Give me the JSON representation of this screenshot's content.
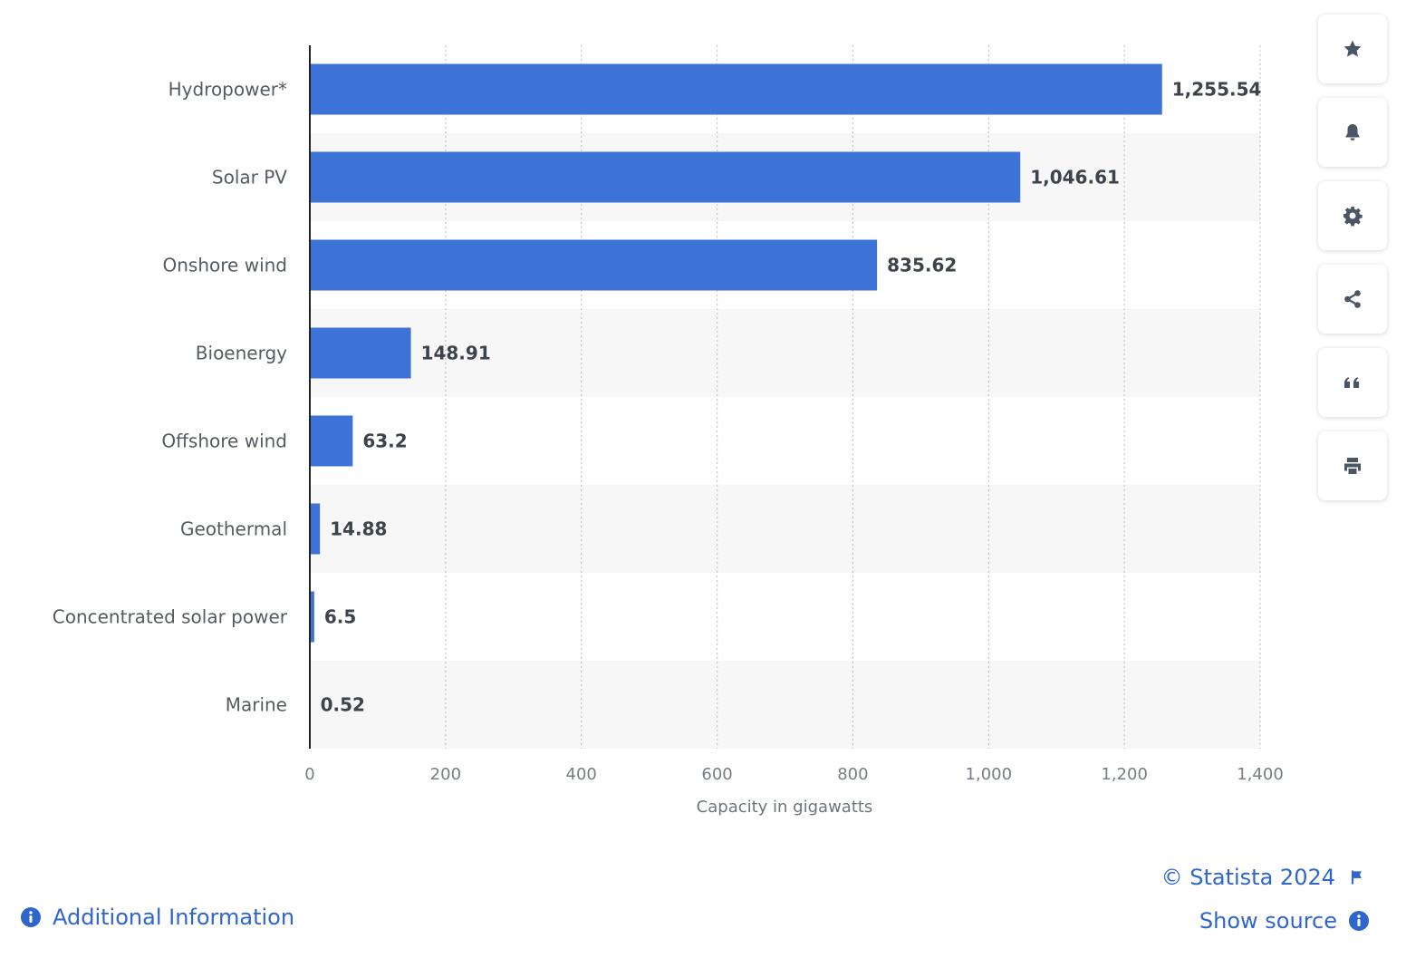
{
  "chart_data": {
    "type": "bar",
    "orientation": "horizontal",
    "categories": [
      "Hydropower*",
      "Solar PV",
      "Onshore wind",
      "Bioenergy",
      "Offshore wind",
      "Geothermal",
      "Concentrated solar power",
      "Marine"
    ],
    "values": [
      1255.54,
      1046.61,
      835.62,
      148.91,
      63.2,
      14.88,
      6.5,
      0.52
    ],
    "value_labels": [
      "1,255.54",
      "1,046.61",
      "835.62",
      "148.91",
      "63.2",
      "14.88",
      "6.5",
      "0.52"
    ],
    "xlabel": "Capacity in gigawatts",
    "xlim": [
      0,
      1400
    ],
    "xticks": [
      0,
      200,
      400,
      600,
      800,
      1000,
      1200,
      1400
    ],
    "xtick_labels": [
      "0",
      "200",
      "400",
      "600",
      "800",
      "1,000",
      "1,200",
      "1,400"
    ],
    "grid": "vertical dotted",
    "bar_color": "#3d72d6"
  },
  "toolbar": {
    "items": [
      {
        "name": "favorite",
        "icon": "star-icon"
      },
      {
        "name": "notifications",
        "icon": "bell-icon"
      },
      {
        "name": "settings",
        "icon": "gear-icon"
      },
      {
        "name": "share",
        "icon": "share-icon"
      },
      {
        "name": "cite",
        "icon": "quote-icon"
      },
      {
        "name": "print",
        "icon": "printer-icon"
      }
    ],
    "icon_color": "#4a5566"
  },
  "footer": {
    "additional_info": "Additional Information",
    "copyright": "© Statista 2024",
    "show_source": "Show source",
    "link_color": "#2f66cc"
  }
}
